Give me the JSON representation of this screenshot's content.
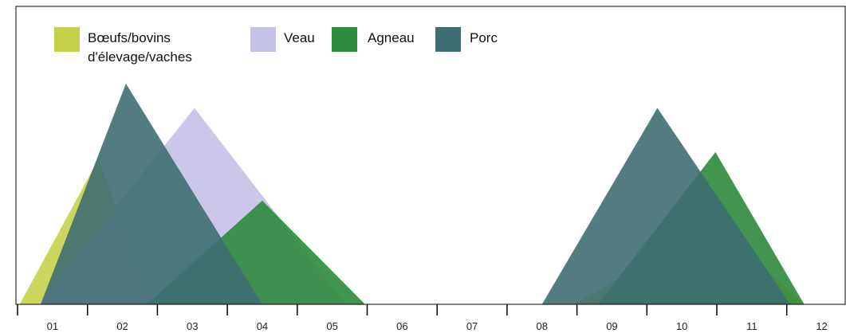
{
  "chart_data": {
    "type": "area",
    "title": "",
    "xlabel": "",
    "ylabel": "",
    "categories": [
      "01",
      "02",
      "03",
      "04",
      "05",
      "06",
      "07",
      "08",
      "09",
      "10",
      "11",
      "12"
    ],
    "grid": false,
    "legend_position": "top-left",
    "series": [
      {
        "name": "Bœufs/bovins d'élevage/vaches",
        "color": "#c5d14a",
        "triangles": [
          {
            "start": 0.03,
            "peak_x": 1.16,
            "peak_y": 0.66,
            "end": 1.9
          },
          {
            "start": 7.95,
            "peak_x": 9.97,
            "peak_y": 0.36,
            "end": 11.26
          }
        ]
      },
      {
        "name": "Veau",
        "color": "#c4c1e8",
        "triangles": [
          {
            "start": 0.3,
            "peak_x": 2.53,
            "peak_y": 0.89,
            "end": 4.7
          }
        ]
      },
      {
        "name": "Agneau",
        "color": "#2e8a3c",
        "triangles": [
          {
            "start": 1.85,
            "peak_x": 3.5,
            "peak_y": 0.47,
            "end": 4.97
          },
          {
            "start": 8.3,
            "peak_x": 9.98,
            "peak_y": 0.69,
            "end": 11.25
          }
        ]
      },
      {
        "name": "Porc",
        "color": "#3f6e72",
        "triangles": [
          {
            "start": 0.33,
            "peak_x": 1.55,
            "peak_y": 1.0,
            "end": 3.5
          },
          {
            "start": 7.5,
            "peak_x": 9.15,
            "peak_y": 0.89,
            "end": 11.05
          }
        ]
      }
    ]
  }
}
